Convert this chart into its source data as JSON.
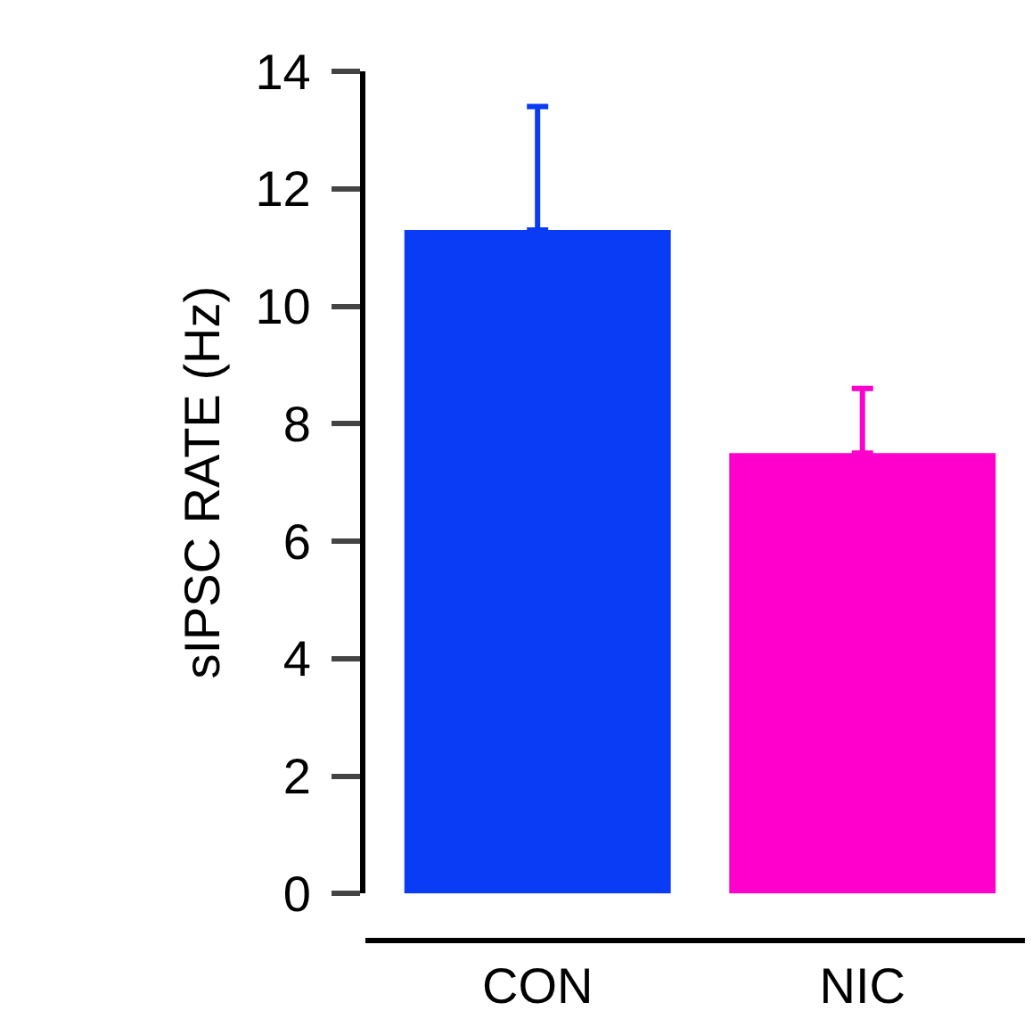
{
  "chart_data": {
    "type": "bar",
    "ylabel": "sIPSC RATE (Hz)",
    "categories": [
      "CON",
      "NIC"
    ],
    "values": [
      11.3,
      7.5
    ],
    "colors": [
      "#0a3cf5",
      "#ff00cc"
    ],
    "errors": [
      [
        11.3,
        13.4
      ],
      [
        7.5,
        8.6
      ]
    ],
    "ylim": [
      0,
      14
    ],
    "yticks": [
      0,
      2,
      4,
      6,
      8,
      10,
      12,
      14
    ],
    "grid": false
  }
}
